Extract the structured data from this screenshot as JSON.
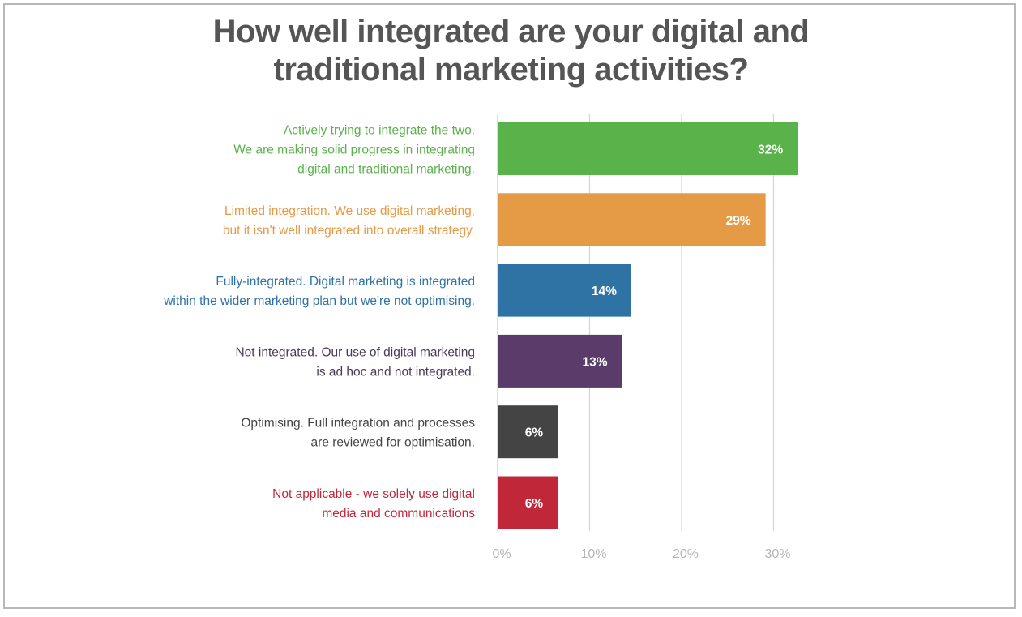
{
  "chart_data": {
    "type": "bar",
    "orientation": "horizontal",
    "title": [
      "How well integrated are your digital and",
      "traditional marketing activities?"
    ],
    "categories": [
      [
        "Actively trying to integrate the two.",
        "We are making solid progress in integrating",
        "digital and traditional marketing."
      ],
      [
        "Limited integration. We use digital marketing,",
        "but it isn't well integrated into overall strategy."
      ],
      [
        "Fully-integrated. Digital marketing is integrated",
        "within the wider marketing plan but we're not optimising."
      ],
      [
        "Not integrated. Our use of digital marketing",
        "is ad hoc and not integrated."
      ],
      [
        "Optimising. Full integration and processes",
        "are reviewed for optimisation."
      ],
      [
        "Not applicable - we solely use digital",
        "media and communications"
      ]
    ],
    "values": [
      32,
      29,
      14,
      13,
      6,
      6
    ],
    "value_labels": [
      "32%",
      "29%",
      "14%",
      "13%",
      "6%",
      "6%"
    ],
    "colors": [
      "#5ab24a",
      "#e59a45",
      "#2f72a4",
      "#5b3b69",
      "#444444",
      "#c0283a"
    ],
    "label_colors": [
      "#5ab24a",
      "#e59a45",
      "#2f72a4",
      "#4a3a5a",
      "#444444",
      "#c0283a"
    ],
    "xlim": [
      0,
      35
    ],
    "xticks": [
      0,
      10,
      20,
      30
    ],
    "xtick_labels": [
      "0%",
      "10%",
      "20%",
      "30%"
    ],
    "grid": true,
    "gridline_color": "#d4d4d4",
    "xlabel": "",
    "ylabel": ""
  }
}
